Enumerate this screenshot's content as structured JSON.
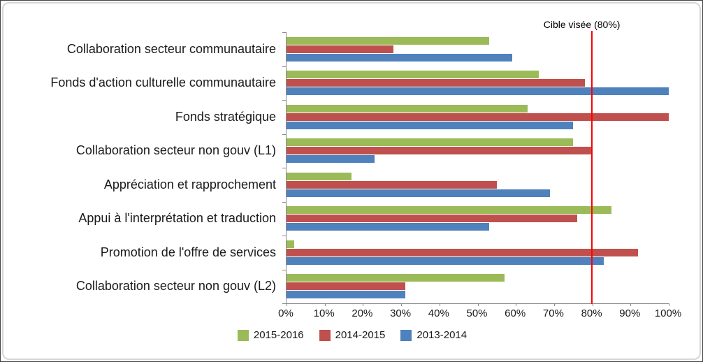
{
  "chart_data": {
    "type": "bar",
    "orientation": "horizontal",
    "title": "",
    "xlabel": "",
    "ylabel": "",
    "xlim": [
      0,
      100
    ],
    "grid": false,
    "legend_position": "bottom",
    "x_ticks": [
      "0%",
      "10%",
      "20%",
      "30%",
      "40%",
      "50%",
      "60%",
      "70%",
      "80%",
      "90%",
      "100%"
    ],
    "categories": [
      "Collaboration secteur communautaire",
      "Fonds d'action culturelle communautaire",
      "Fonds stratégique",
      "Collaboration secteur non gouv (L1)",
      "Appréciation et rapprochement",
      "Appui à l'interprétation et traduction",
      "Promotion de l'offre de services",
      "Collaboration secteur non gouv (L2)"
    ],
    "series": [
      {
        "name": "2015-2016",
        "color": "#9BBB59",
        "values": [
          53,
          66,
          63,
          75,
          17,
          85,
          2,
          57
        ]
      },
      {
        "name": "2014-2015",
        "color": "#C0504D",
        "values": [
          28,
          78,
          100,
          80,
          55,
          76,
          92,
          31
        ]
      },
      {
        "name": "2013-2014",
        "color": "#4F81BD",
        "values": [
          59,
          100,
          75,
          23,
          69,
          53,
          83,
          31
        ]
      }
    ],
    "target_line": {
      "value": 80,
      "label": "Cible visée (80%)",
      "color": "#FF0000"
    },
    "axis_color": "#8c8c8c"
  }
}
